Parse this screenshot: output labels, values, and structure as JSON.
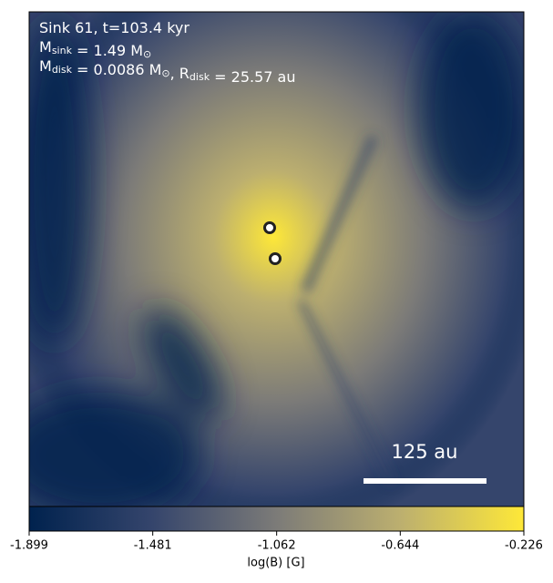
{
  "chart_data": {
    "type": "heatmap",
    "annotations": [
      [
        "Sink 61, t=103.4 kyr"
      ],
      [
        "M",
        {
          "sub": "sink"
        },
        " = 1.49 M",
        {
          "sub": "⊙"
        }
      ],
      [
        "M",
        {
          "sub": "disk"
        },
        " = 0.0086 M",
        {
          "sub": "⊙"
        },
        ", R",
        {
          "sub": "disk"
        },
        " = 25.57 au"
      ]
    ],
    "scale_bar_label": "125 au",
    "colorbar_label": "log(B) [G]",
    "clim": [
      -1.899,
      -0.226
    ],
    "cticks": [
      -1.899,
      -1.481,
      -1.062,
      -0.644,
      -0.226
    ],
    "colormap": [
      "#00224e",
      "#35456c",
      "#7c7b78",
      "#bcaf6f",
      "#fee838"
    ]
  }
}
